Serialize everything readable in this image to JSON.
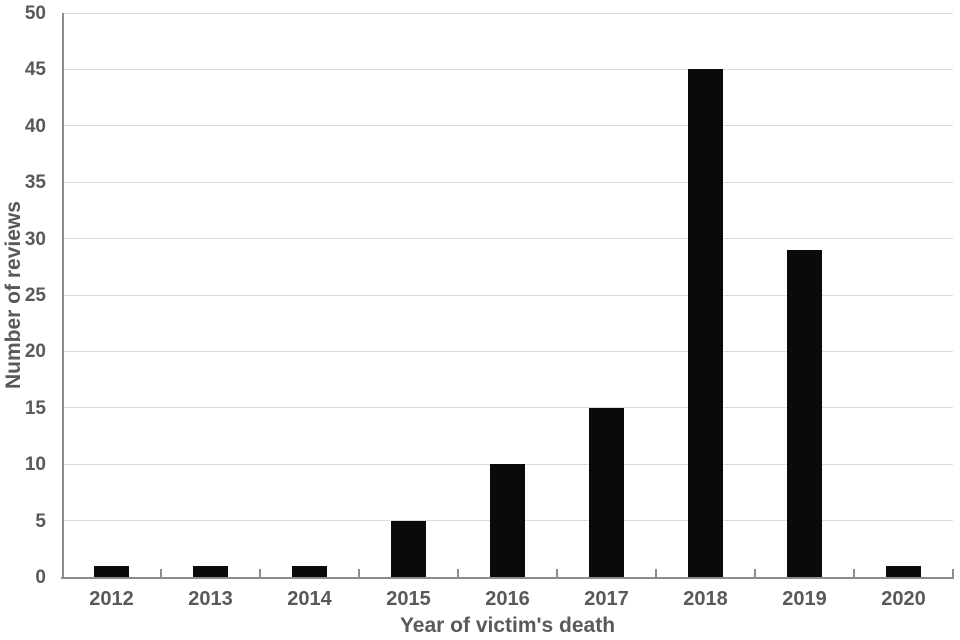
{
  "chart_data": {
    "type": "bar",
    "categories": [
      "2012",
      "2013",
      "2014",
      "2015",
      "2016",
      "2017",
      "2018",
      "2019",
      "2020"
    ],
    "values": [
      1,
      1,
      1,
      5,
      10,
      15,
      45,
      29,
      1
    ],
    "title": "",
    "xlabel": "Year of victim's death",
    "ylabel": "Number of reviews",
    "ylim": [
      0,
      50
    ],
    "ytick_step": 5,
    "ytick_labels": [
      "0",
      "5",
      "10",
      "15",
      "20",
      "25",
      "30",
      "35",
      "40",
      "45",
      "50"
    ],
    "grid": "horizontal",
    "legend_position": "none",
    "bar_color": "#0a0a0a",
    "axis_color": "#8c8c8c",
    "grid_color": "#dcdcdc",
    "text_color": "#595959",
    "background_color": "#ffffff"
  }
}
